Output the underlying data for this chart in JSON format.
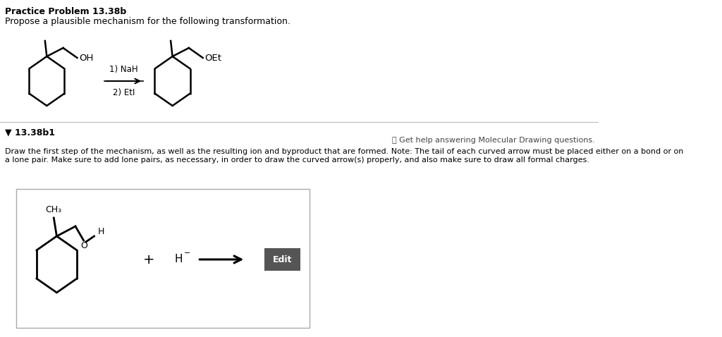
{
  "title": "Practice Problem 13.38b",
  "subtitle": "Propose a plausible mechanism for the following transformation.",
  "section_label": "▼ 13.38b1",
  "help_text": "ⓘ Get help answering Molecular Drawing questions.",
  "instruction_line1": "Draw the first step of the mechanism, as well as the resulting ion and byproduct that are formed. Note: The tail of each curved arrow must be placed either on a bond or on",
  "instruction_line2": "a lone pair. Make sure to add lone pairs, as necessary, in order to draw the curved arrow(s) properly, and also make sure to draw all formal charges.",
  "reagent_line1": "1) NaH",
  "reagent_line2": "2) EtI",
  "background_color": "#ffffff",
  "separator_color": "#bbbbbb",
  "edit_button_color": "#555555",
  "edit_button_text": "Edit",
  "edit_button_text_color": "#ffffff"
}
